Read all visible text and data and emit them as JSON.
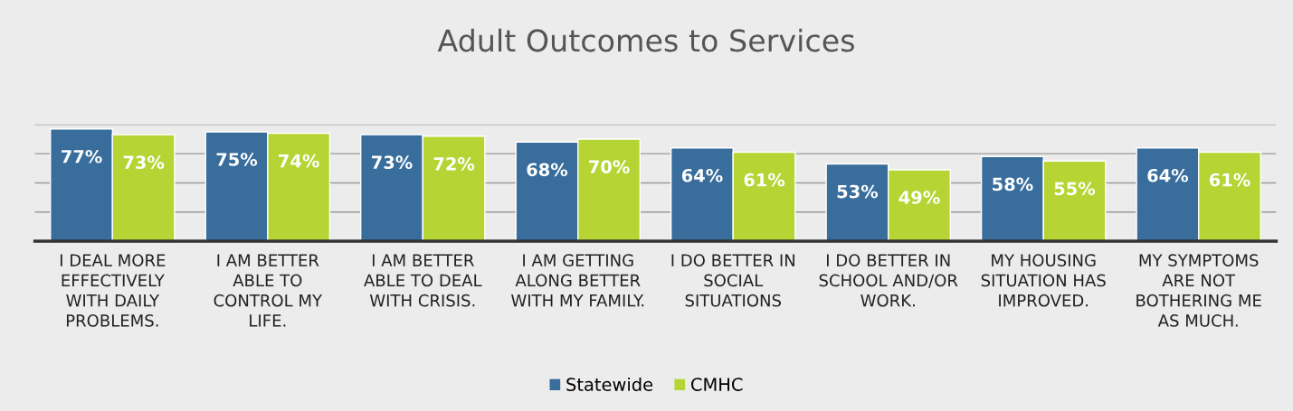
{
  "chart_data": {
    "type": "bar",
    "title": "Adult Outcomes to Services",
    "categories": [
      "I DEAL MORE\nEFFECTIVELY\nWITH DAILY\nPROBLEMS.",
      "I AM BETTER\nABLE TO\nCONTROL MY\nLIFE.",
      "I AM BETTER\nABLE TO DEAL\nWITH CRISIS.",
      "I AM GETTING\nALONG BETTER\nWITH MY FAMILY.",
      "I DO BETTER IN\nSOCIAL\nSITUATIONS",
      "I DO BETTER IN\nSCHOOL AND/OR\nWORK.",
      "MY HOUSING\nSITUATION HAS\nIMPROVED.",
      "MY SYMPTOMS\nARE NOT\nBOTHERING ME\nAS MUCH."
    ],
    "series": [
      {
        "name": "Statewide",
        "color": "#386d9c",
        "values": [
          77,
          75,
          73,
          68,
          64,
          53,
          58,
          64
        ],
        "value_labels": [
          "77%",
          "75%",
          "73%",
          "68%",
          "64%",
          "53%",
          "58%",
          "64%"
        ]
      },
      {
        "name": "CMHC",
        "color": "#b6d433",
        "values": [
          73,
          74,
          72,
          70,
          61,
          49,
          55,
          61
        ],
        "value_labels": [
          "73%",
          "74%",
          "72%",
          "70%",
          "61%",
          "49%",
          "55%",
          "61%"
        ]
      }
    ],
    "ylim": [
      0,
      80
    ],
    "yticks": [
      {
        "value": 0,
        "label": null
      },
      {
        "value": 20,
        "label": null
      },
      {
        "value": 40,
        "label": null
      },
      {
        "value": 60,
        "label": null
      },
      {
        "value": 80,
        "label": null
      }
    ],
    "tick_labels": "x",
    "grid": "y",
    "legend": "bottom"
  }
}
